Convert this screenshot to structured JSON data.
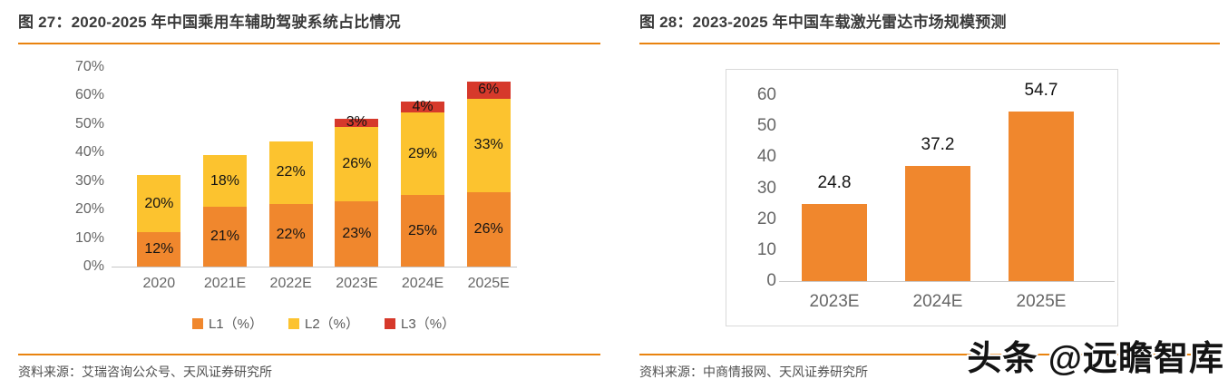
{
  "left_panel": {
    "title": "图 27：2020-2025 年中国乘用车辅助驾驶系统占比情况",
    "source": "资料来源：艾瑞咨询公众号、天风证券研究所"
  },
  "right_panel": {
    "title": "图 28：2023-2025 年中国车载激光雷达市场规模预测",
    "source": "资料来源：中商情报网、天风证券研究所"
  },
  "watermark": "头条 @远瞻智库",
  "colors": {
    "accent_orange": "#E9830F",
    "bar_orange": "#F0872D",
    "bar_yellow": "#FCC32F",
    "bar_red": "#D6392B",
    "axis_text": "#666666",
    "axis_line": "#C6C6C6",
    "title_text": "#3A3A3A",
    "source_text": "#4F4F4F"
  },
  "chart_data": [
    {
      "type": "bar",
      "stacked": true,
      "title": "2020-2025 年中国乘用车辅助驾驶系统占比情况",
      "categories": [
        "2020",
        "2021E",
        "2022E",
        "2023E",
        "2024E",
        "2025E"
      ],
      "series": [
        {
          "name": "L1（%）",
          "color": "#F0872D",
          "values": [
            12,
            21,
            22,
            23,
            25,
            26
          ]
        },
        {
          "name": "L2（%）",
          "color": "#FCC32F",
          "values": [
            20,
            18,
            22,
            26,
            29,
            33
          ]
        },
        {
          "name": "L3（%）",
          "color": "#D6392B",
          "values": [
            0,
            0,
            0,
            3,
            4,
            6
          ]
        }
      ],
      "xlabel": "",
      "ylabel": "",
      "ylim": [
        0,
        70
      ],
      "ytick_step": 10,
      "ytick_suffix": "%",
      "data_labels": "inside",
      "data_label_suffix": "%",
      "legend_position": "bottom",
      "grid": false
    },
    {
      "type": "bar",
      "stacked": false,
      "title": "2023-2025 年中国车载激光雷达市场规模预测",
      "categories": [
        "2023E",
        "2024E",
        "2025E"
      ],
      "values": [
        24.8,
        37.2,
        54.7
      ],
      "bar_color": "#F0872D",
      "xlabel": "",
      "ylabel": "",
      "ylim": [
        0,
        60
      ],
      "ytick_step": 10,
      "ytick_suffix": "",
      "data_labels": "above",
      "legend_position": "none",
      "grid": false
    }
  ]
}
